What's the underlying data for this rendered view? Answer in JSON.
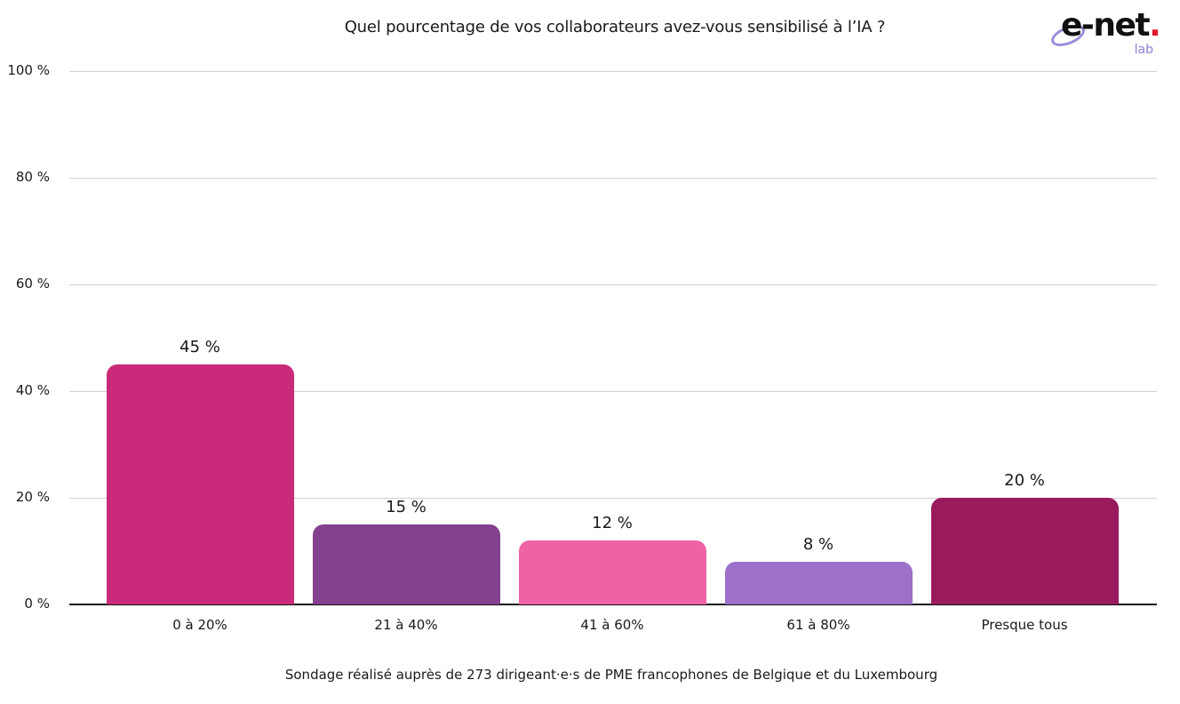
{
  "header": {
    "title": "Quel pourcentage de vos collaborateurs avez-vous sensibilisé à l’IA ?"
  },
  "logo": {
    "word": "e-net",
    "dot": ".",
    "sub": "lab",
    "colors": {
      "text": "#111111",
      "dot": "#e0182d",
      "accent": "#8e7fd6"
    }
  },
  "footnote": "Sondage réalisé auprès de 273 dirigeant·e·s de PME francophones de Belgique et du Luxembourg",
  "chart_data": {
    "type": "bar",
    "title": "Quel pourcentage de vos collaborateurs avez-vous sensibilisé à l’IA ?",
    "xlabel": "",
    "ylabel": "",
    "categories": [
      "0 à 20%",
      "21 à 40%",
      "41 à 60%",
      "61 à 80%",
      "Presque tous"
    ],
    "values": [
      45,
      15,
      12,
      8,
      20
    ],
    "value_labels": [
      "45 %",
      "15 %",
      "12 %",
      "8 %",
      "20 %"
    ],
    "colors": [
      "#c92a7a",
      "#83418f",
      "#ee62a6",
      "#9d70c9",
      "#9a1a5e"
    ],
    "ylim": [
      0,
      100
    ],
    "yticks": [
      0,
      20,
      40,
      60,
      80,
      100
    ],
    "ytick_labels": [
      "0 %",
      "20 %",
      "40 %",
      "60 %",
      "80 %",
      "100 %"
    ],
    "grid": true,
    "legend": "none",
    "annotation": "Sondage réalisé auprès de 273 dirigeant·e·s de PME francophones de Belgique et du Luxembourg"
  }
}
